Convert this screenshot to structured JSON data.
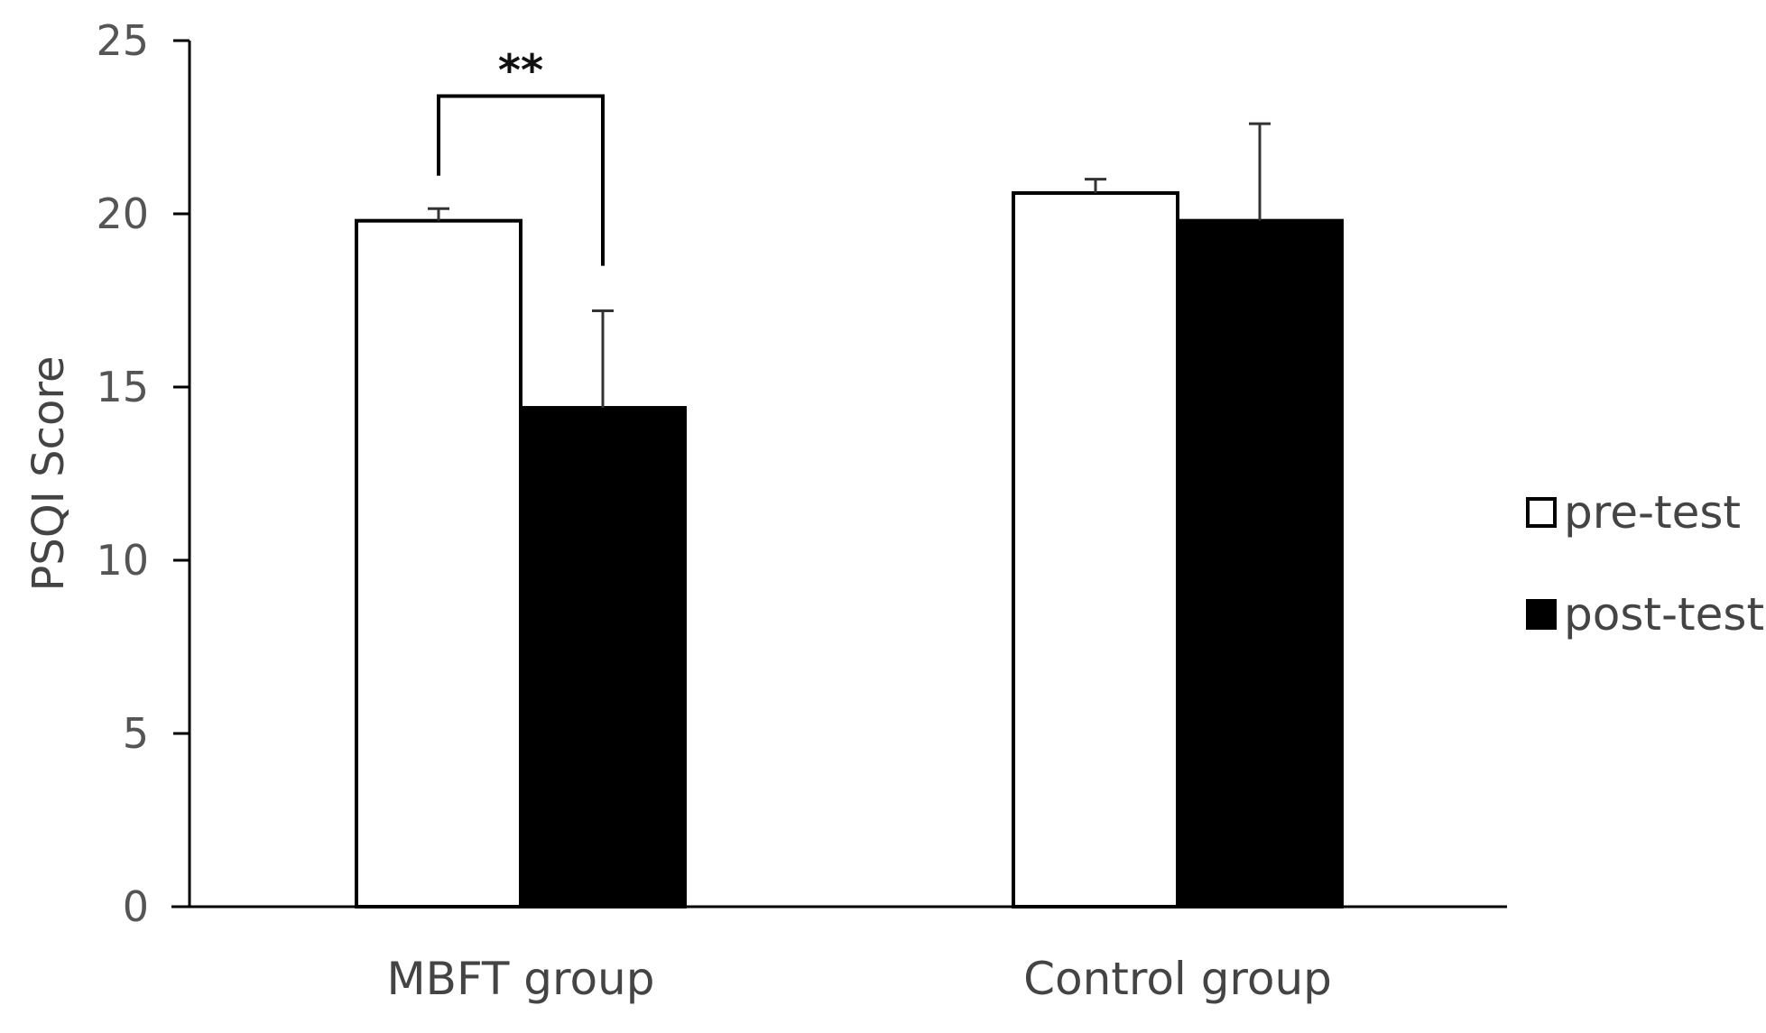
{
  "chart_data": {
    "type": "bar",
    "title": "",
    "xlabel": "",
    "ylabel": "PSQI  Score",
    "ylim": [
      0,
      25
    ],
    "yticks": [
      0,
      5,
      10,
      15,
      20,
      25
    ],
    "categories": [
      "MBFT group",
      "Control group"
    ],
    "series": [
      {
        "name": "pre-test",
        "fill": "#ffffff",
        "stroke": "#000000",
        "values": [
          19.8,
          20.6
        ],
        "errors": [
          0.35,
          0.4
        ]
      },
      {
        "name": "post-test",
        "fill": "#000000",
        "stroke": "#000000",
        "values": [
          14.4,
          19.8
        ],
        "errors": [
          2.8,
          2.8
        ]
      }
    ],
    "significance": [
      {
        "category": "MBFT group",
        "label": "**"
      }
    ],
    "legend": "right",
    "grid": false
  }
}
